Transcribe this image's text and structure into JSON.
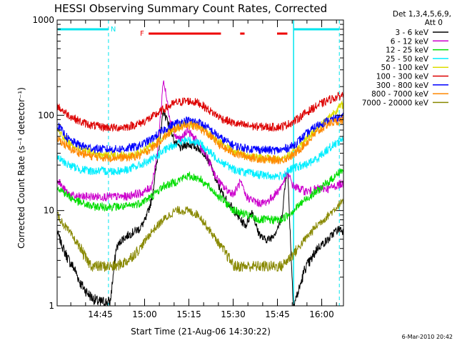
{
  "chart_data": {
    "type": "line",
    "title": "HESSI Observing Summary Count Rates, Corrected",
    "xlabel": "Start Time (21-Aug-06 14:30:22)",
    "ylabel": "Corrected Count Rate (s⁻¹ detector⁻¹)",
    "yscale": "log",
    "ylim": [
      1,
      1000
    ],
    "xlim_minutes": [
      0,
      97
    ],
    "x_ticks": [
      "14:45",
      "15:00",
      "15:15",
      "15:30",
      "15:45",
      "16:00"
    ],
    "y_ticks": [
      "1",
      "10",
      "100",
      "1000"
    ],
    "footer_date": "6-Mar-2010 20:42",
    "legend_header": [
      "Det 1,3,4,5,6,9,",
      "Att 0"
    ],
    "night_label": "N",
    "flare_label": "F",
    "series": [
      {
        "name": "3 - 6 keV",
        "color": "#000000",
        "x": [
          0,
          2,
          4,
          6,
          8,
          10,
          12,
          14,
          16,
          18,
          20,
          22,
          24,
          26,
          28,
          30,
          32,
          34,
          36,
          38,
          40,
          42,
          44,
          46,
          48,
          50,
          52,
          54,
          56,
          58,
          60,
          62,
          64,
          66,
          68,
          70,
          72,
          74,
          76,
          78,
          80,
          82,
          84,
          86,
          88,
          90,
          92,
          94,
          96,
          97
        ],
        "y": [
          6,
          4,
          3,
          2.4,
          1.7,
          1.4,
          1.2,
          1.1,
          1.1,
          1.1,
          4,
          5,
          5.5,
          6,
          6.5,
          8,
          13,
          35,
          110,
          80,
          50,
          45,
          50,
          48,
          45,
          40,
          30,
          20,
          15,
          12,
          10,
          8,
          7,
          10,
          6,
          5,
          5,
          6,
          8,
          30,
          1,
          1.5,
          2.5,
          3,
          4,
          4.5,
          5,
          6,
          6.5,
          6
        ]
      },
      {
        "name": "6 - 12 keV",
        "color": "#cc00cc",
        "x": [
          0,
          2,
          4,
          6,
          8,
          10,
          12,
          14,
          16,
          18,
          20,
          22,
          24,
          26,
          28,
          30,
          32,
          34,
          36,
          38,
          40,
          42,
          44,
          46,
          48,
          50,
          52,
          54,
          56,
          58,
          60,
          62,
          64,
          66,
          68,
          70,
          72,
          74,
          76,
          78,
          80,
          82,
          84,
          86,
          88,
          90,
          92,
          94,
          96,
          97
        ],
        "y": [
          22,
          17,
          15,
          14,
          14,
          14,
          14,
          14,
          14,
          14,
          14,
          14,
          14,
          15,
          15,
          16,
          18,
          40,
          240,
          100,
          60,
          55,
          70,
          60,
          50,
          40,
          30,
          22,
          18,
          16,
          15,
          20,
          14,
          13,
          12,
          12,
          13,
          15,
          18,
          25,
          18,
          17,
          16,
          16,
          17,
          17,
          17,
          18,
          19,
          19
        ]
      },
      {
        "name": "12 - 25 keV",
        "color": "#00dd00",
        "x": [
          0,
          4,
          8,
          12,
          16,
          20,
          24,
          28,
          32,
          36,
          40,
          44,
          48,
          52,
          56,
          60,
          64,
          68,
          72,
          76,
          80,
          84,
          88,
          92,
          96,
          97
        ],
        "y": [
          18,
          14,
          12,
          11,
          11,
          11,
          11,
          12,
          14,
          18,
          20,
          23,
          22,
          17,
          13,
          10,
          9,
          8,
          8,
          8,
          10,
          13,
          16,
          20,
          26,
          27
        ]
      },
      {
        "name": "25 - 50 keV",
        "color": "#00eeff",
        "x": [
          0,
          4,
          8,
          12,
          16,
          20,
          24,
          28,
          32,
          36,
          40,
          44,
          48,
          52,
          56,
          60,
          64,
          68,
          72,
          76,
          80,
          84,
          88,
          92,
          96,
          97
        ],
        "y": [
          36,
          30,
          27,
          26,
          26,
          26,
          27,
          30,
          34,
          42,
          50,
          55,
          52,
          40,
          32,
          27,
          25,
          24,
          23,
          23,
          28,
          30,
          35,
          45,
          55,
          57
        ]
      },
      {
        "name": "50 - 100 keV",
        "color": "#dddd00",
        "x": [
          0,
          4,
          8,
          12,
          16,
          20,
          24,
          28,
          32,
          36,
          40,
          44,
          48,
          52,
          56,
          60,
          64,
          68,
          72,
          76,
          80,
          84,
          88,
          92,
          96,
          97
        ],
        "y": [
          70,
          52,
          44,
          40,
          38,
          38,
          38,
          40,
          48,
          60,
          75,
          82,
          78,
          62,
          50,
          42,
          38,
          36,
          35,
          35,
          40,
          55,
          72,
          95,
          125,
          130
        ]
      },
      {
        "name": "100 - 300 keV",
        "color": "#dd0000",
        "x": [
          0,
          4,
          8,
          12,
          16,
          20,
          24,
          28,
          32,
          36,
          40,
          44,
          48,
          52,
          56,
          60,
          64,
          68,
          72,
          76,
          80,
          84,
          88,
          92,
          96,
          97
        ],
        "y": [
          125,
          100,
          85,
          78,
          75,
          74,
          76,
          82,
          95,
          115,
          135,
          142,
          135,
          110,
          92,
          82,
          78,
          76,
          75,
          76,
          85,
          105,
          125,
          145,
          160,
          165
        ]
      },
      {
        "name": "300 - 800 keV",
        "color": "#0000ff",
        "x": [
          0,
          4,
          8,
          12,
          16,
          20,
          24,
          28,
          32,
          36,
          40,
          44,
          48,
          52,
          56,
          60,
          64,
          68,
          72,
          76,
          80,
          84,
          88,
          92,
          96,
          97
        ],
        "y": [
          80,
          55,
          48,
          45,
          44,
          44,
          45,
          48,
          56,
          70,
          82,
          88,
          85,
          70,
          56,
          48,
          45,
          44,
          43,
          43,
          48,
          62,
          78,
          88,
          95,
          95
        ]
      },
      {
        "name": "800 - 7000 keV",
        "color": "#ff8800",
        "x": [
          0,
          4,
          8,
          12,
          16,
          20,
          24,
          28,
          32,
          36,
          40,
          44,
          48,
          52,
          56,
          60,
          64,
          68,
          72,
          76,
          80,
          84,
          88,
          92,
          96,
          97
        ],
        "y": [
          58,
          45,
          40,
          37,
          36,
          36,
          36,
          38,
          45,
          58,
          72,
          80,
          75,
          60,
          46,
          40,
          37,
          35,
          34,
          34,
          38,
          50,
          66,
          82,
          88,
          90
        ]
      },
      {
        "name": "7000 - 20000 keV",
        "color": "#888800",
        "x": [
          0,
          4,
          8,
          10,
          12,
          16,
          20,
          24,
          28,
          32,
          36,
          40,
          44,
          48,
          52,
          56,
          60,
          64,
          68,
          72,
          76,
          80,
          84,
          88,
          92,
          96,
          97
        ],
        "y": [
          9,
          6,
          4,
          3,
          2.6,
          2.6,
          2.6,
          3,
          4,
          6,
          8,
          10,
          10,
          9,
          6,
          4,
          2.6,
          2.6,
          2.6,
          2.6,
          2.6,
          3.5,
          5,
          7,
          9,
          12,
          12
        ]
      }
    ]
  }
}
